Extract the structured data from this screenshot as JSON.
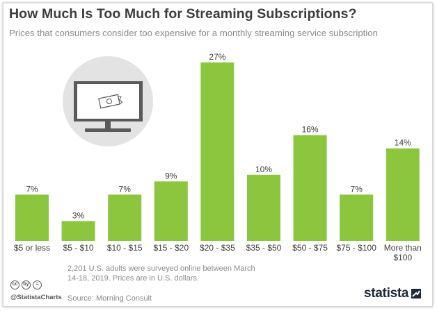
{
  "title": "How Much Is Too Much for Streaming Subscriptions?",
  "subtitle": "Prices that consumers consider too expensive for a monthly streaming service subscription",
  "colors": {
    "bar": "#8cc63f",
    "text": "#3d3d3d",
    "muted": "#8a8a8a"
  },
  "chart_data": {
    "type": "bar",
    "categories": [
      "$5 or less",
      "$5 - $10",
      "$10 - $15",
      "$15 - $20",
      "$20 - $35",
      "$35 - $50",
      "$50 - $75",
      "$75 - $100",
      "More than $100"
    ],
    "category_lines": [
      [
        "$5 or less"
      ],
      [
        "$5 - $10"
      ],
      [
        "$10 - $15"
      ],
      [
        "$15 - $20"
      ],
      [
        "$20 - $35"
      ],
      [
        "$35 - $50"
      ],
      [
        "$50 - $75"
      ],
      [
        "$75 - $100"
      ],
      [
        "More than",
        "$100"
      ]
    ],
    "values": [
      7,
      3,
      7,
      9,
      27,
      10,
      16,
      7,
      14
    ],
    "value_labels": [
      "7%",
      "3%",
      "7%",
      "9%",
      "27%",
      "10%",
      "16%",
      "7%",
      "14%"
    ],
    "unit": "%",
    "ylim": [
      0,
      27
    ],
    "grid": false,
    "legend": "none"
  },
  "illustration": {
    "icon": "tv-with-money-icon"
  },
  "footer": {
    "note": "2,201 U.S. adults were surveyed online between March 14-18, 2019. Prices are in U.S. dollars.",
    "source": "Source: Morning Consult",
    "handle": "@StatistaCharts",
    "license_icons": [
      "cc",
      "by",
      "="
    ],
    "logo_text": "statista"
  }
}
